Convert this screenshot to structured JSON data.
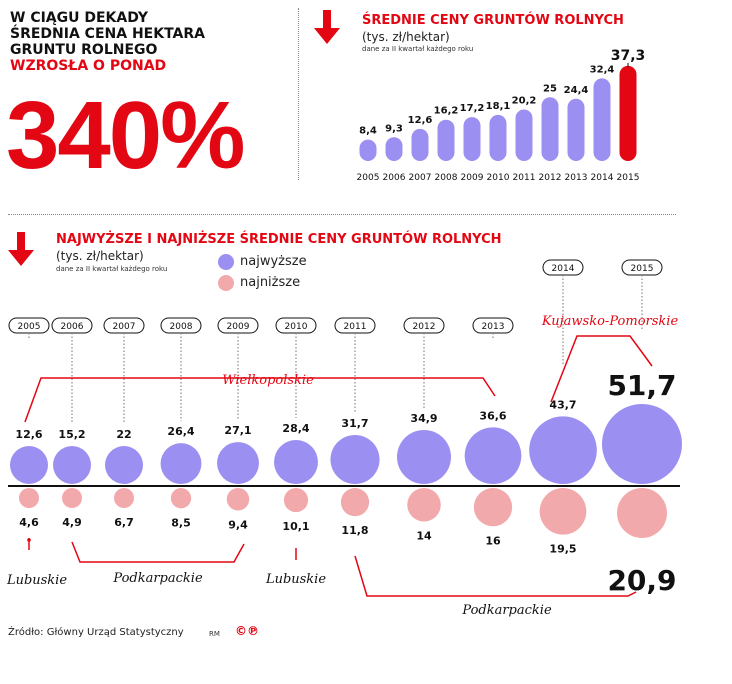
{
  "headline": {
    "line1": "W CIĄGU DEKADY",
    "line2": "ŚREDNIA CENA HEKTARA",
    "line3": "GRUNTU ROLNEGO",
    "line4": "WZROSŁA O PONAD",
    "big": "340%"
  },
  "colors": {
    "red": "#e30613",
    "purple": "#9b8ff2",
    "pink": "#f2a9ac",
    "dotted": "#888888"
  },
  "icons": [
    "down-arrow-icon",
    "copyright-icon"
  ],
  "chart_data": [
    {
      "type": "bar",
      "title": "ŚREDNIE CENY GRUNTÓW ROLNYCH",
      "unit": "(tys. zł/hektar)",
      "note": "dane za II kwartał każdego roku",
      "categories": [
        "2005",
        "2006",
        "2007",
        "2008",
        "2009",
        "2010",
        "2011",
        "2012",
        "2013",
        "2014",
        "2015"
      ],
      "values": [
        8.4,
        9.3,
        12.6,
        16.2,
        17.2,
        18.1,
        20.2,
        25,
        24.4,
        32.4,
        37.3
      ],
      "labels": [
        "8,4",
        "9,3",
        "12,6",
        "16,2",
        "17,2",
        "18,1",
        "20,2",
        "25",
        "24,4",
        "32,4",
        "37,3"
      ],
      "highlight_last": true
    },
    {
      "type": "bubble",
      "title": "NAJWYŻSZE I NAJNIŻSZE ŚREDNIE CENY GRUNTÓW ROLNYCH",
      "unit": "(tys. zł/hektar)",
      "note": "dane za II kwartał każdego roku",
      "legend": {
        "highest": "najwyższe",
        "lowest": "najniższe"
      },
      "years": [
        "2005",
        "2006",
        "2007",
        "2008",
        "2009",
        "2010",
        "2011",
        "2012",
        "2013",
        "2014",
        "2015"
      ],
      "highest": [
        12.6,
        15.2,
        22,
        26.4,
        27.1,
        28.4,
        31.7,
        34.9,
        36.6,
        43.7,
        51.7
      ],
      "highest_labels": [
        "12,6",
        "15,2",
        "22",
        "26,4",
        "27,1",
        "28,4",
        "31,7",
        "34,9",
        "36,6",
        "43,7",
        "51,7"
      ],
      "lowest": [
        4.6,
        4.9,
        6.7,
        8.5,
        9.4,
        10.1,
        11.8,
        14,
        16,
        19.5,
        20.9
      ],
      "lowest_labels": [
        "4,6",
        "4,9",
        "6,7",
        "8,5",
        "9,4",
        "10,1",
        "11,8",
        "14",
        "16",
        "19,5",
        "20,9"
      ],
      "regions": {
        "highest": [
          {
            "name": "Wielkopolskie",
            "years": [
              "2005",
              "2013"
            ]
          },
          {
            "name": "Kujawsko-Pomorskie",
            "years": [
              "2014",
              "2015"
            ]
          }
        ],
        "lowest": [
          {
            "name": "Lubuskie",
            "years": [
              "2005"
            ]
          },
          {
            "name": "Podkarpackie",
            "years": [
              "2006",
              "2009"
            ]
          },
          {
            "name": "Lubuskie",
            "years": [
              "2010"
            ]
          },
          {
            "name": "Podkarpackie",
            "years": [
              "2011",
              "2015"
            ]
          }
        ]
      }
    }
  ],
  "footer": {
    "source": "Źródło: Główny Urząd Statystyczny",
    "rm": "RM",
    "logo": "©℗"
  }
}
